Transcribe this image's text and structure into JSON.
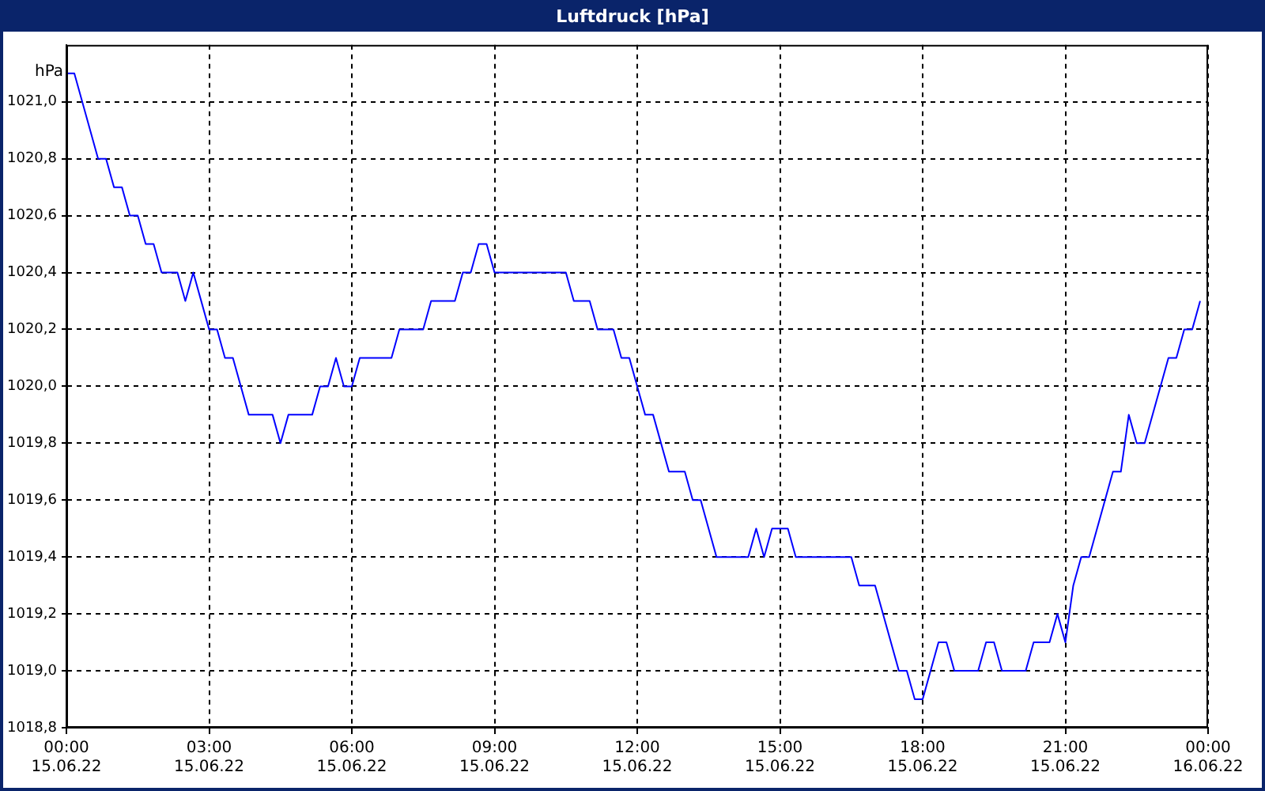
{
  "chart_data": {
    "type": "line",
    "title": "Luftdruck [hPa]",
    "ylabel": "hPa",
    "x": [
      "--06-15T00:00",
      "--06-15T00:10",
      "--06-15T00:40",
      "--06-15T00:50",
      "--06-15T01:00",
      "--06-15T01:10",
      "--06-15T01:20",
      "--06-15T01:30",
      "--06-15T01:40",
      "--06-15T01:50",
      "--06-15T02:00",
      "--06-15T02:20",
      "--06-15T02:30",
      "--06-15T02:40",
      "--06-15T03:00",
      "--06-15T03:10",
      "--06-15T03:20",
      "--06-15T03:30",
      "--06-15T03:50",
      "--06-15T04:20",
      "--06-15T04:30",
      "--06-15T04:40",
      "--06-15T05:10",
      "--06-15T05:20",
      "--06-15T05:30",
      "--06-15T05:40",
      "--06-15T05:50",
      "--06-15T06:00",
      "--06-15T06:10",
      "--06-15T06:50",
      "--06-15T07:00",
      "--06-15T07:30",
      "--06-15T07:40",
      "--06-15T08:10",
      "--06-15T08:20",
      "--06-15T08:30",
      "--06-15T08:40",
      "--06-15T08:50",
      "--06-15T09:00",
      "--06-15T10:30",
      "--06-15T10:40",
      "--06-15T11:00",
      "--06-15T11:10",
      "--06-15T11:30",
      "--06-15T11:40",
      "--06-15T11:50",
      "--06-15T12:00",
      "--06-15T12:10",
      "--06-15T12:20",
      "--06-15T12:40",
      "--06-15T13:00",
      "--06-15T13:10",
      "--06-15T13:20",
      "--06-15T13:40",
      "--06-15T14:20",
      "--06-15T14:30",
      "--06-15T14:40",
      "--06-15T14:50",
      "--06-15T15:10",
      "--06-15T15:20",
      "--06-15T16:30",
      "--06-15T16:40",
      "--06-15T17:00",
      "--06-15T17:30",
      "--06-15T17:40",
      "--06-15T17:50",
      "--06-15T18:00",
      "--06-15T18:10",
      "--06-15T18:20",
      "--06-15T18:30",
      "--06-15T18:40",
      "--06-15T19:10",
      "--06-15T19:20",
      "--06-15T19:30",
      "--06-15T19:40",
      "--06-15T20:10",
      "--06-15T20:20",
      "--06-15T20:40",
      "--06-15T20:50",
      "--06-15T21:00",
      "--06-15T21:10",
      "--06-15T21:20",
      "--06-15T21:30",
      "--06-15T21:50",
      "--06-15T22:00",
      "--06-15T22:10",
      "--06-15T22:20",
      "--06-15T22:30",
      "--06-15T22:40",
      "--06-15T23:00",
      "--06-15T23:10",
      "--06-15T23:20",
      "--06-15T23:30",
      "--06-15T23:40",
      "--06-15T23:50"
    ],
    "values": [
      1021.1,
      1021.1,
      1020.8,
      1020.8,
      1020.7,
      1020.7,
      1020.6,
      1020.6,
      1020.5,
      1020.5,
      1020.4,
      1020.4,
      1020.3,
      1020.4,
      1020.2,
      1020.2,
      1020.1,
      1020.1,
      1019.9,
      1019.9,
      1019.8,
      1019.9,
      1019.9,
      1020.0,
      1020.0,
      1020.1,
      1020.0,
      1020.0,
      1020.1,
      1020.1,
      1020.2,
      1020.2,
      1020.3,
      1020.3,
      1020.4,
      1020.4,
      1020.5,
      1020.5,
      1020.4,
      1020.4,
      1020.3,
      1020.3,
      1020.2,
      1020.2,
      1020.1,
      1020.1,
      1020.0,
      1019.9,
      1019.9,
      1019.7,
      1019.7,
      1019.6,
      1019.6,
      1019.4,
      1019.4,
      1019.5,
      1019.4,
      1019.5,
      1019.5,
      1019.4,
      1019.4,
      1019.3,
      1019.3,
      1019.0,
      1019.0,
      1018.9,
      1018.9,
      1019.0,
      1019.1,
      1019.1,
      1019.0,
      1019.0,
      1019.1,
      1019.1,
      1019.0,
      1019.0,
      1019.1,
      1019.1,
      1019.2,
      1019.1,
      1019.3,
      1019.4,
      1019.4,
      1019.6,
      1019.7,
      1019.7,
      1019.9,
      1019.8,
      1019.8,
      1020.0,
      1020.1,
      1020.1,
      1020.2,
      1020.2,
      1020.3
    ],
    "color": "#0000ff",
    "marker": "none",
    "line_style": "solid",
    "grid": true,
    "legend": false,
    "xlim": [
      "--06-15T00:00",
      "--06-16T00:00"
    ],
    "xticks": [
      {
        "value": "--06-15T00:00",
        "label": "00:00 15.06.22"
      },
      {
        "value": "--06-15T03:00",
        "label": "03:00 15.06.22"
      },
      {
        "value": "--06-15T06:00",
        "label": "06:00 15.06.22"
      },
      {
        "value": "--06-15T09:00",
        "label": "09:00 15.06.22"
      },
      {
        "value": "--06-15T12:00",
        "label": "12:00 15.06.22"
      },
      {
        "value": "--06-15T15:00",
        "label": "15:00 15.06.22"
      },
      {
        "value": "--06-15T18:00",
        "label": "18:00 15.06.22"
      },
      {
        "value": "--06-15T21:00",
        "label": "21:00 15.06.22"
      },
      {
        "value": "--06-16T00:00",
        "label": "00:00 16.06.22"
      }
    ],
    "ylim": [
      1018.8,
      1021.2
    ],
    "yticks": [
      {
        "value": 1018.8,
        "label": "1018,8"
      },
      {
        "value": 1019.0,
        "label": "1019,0"
      },
      {
        "value": 1019.2,
        "label": "1019,2"
      },
      {
        "value": 1019.4,
        "label": "1019,4"
      },
      {
        "value": 1019.6,
        "label": "1019,6"
      },
      {
        "value": 1019.8,
        "label": "1019,8"
      },
      {
        "value": 1020.0,
        "label": "1020,0"
      },
      {
        "value": 1020.2,
        "label": "1020,2"
      },
      {
        "value": 1020.4,
        "label": "1020,4"
      },
      {
        "value": 1020.6,
        "label": "1020,6"
      },
      {
        "value": 1020.8,
        "label": "1020,8"
      },
      {
        "value": 1021.0,
        "label": "1021,0"
      }
    ]
  }
}
